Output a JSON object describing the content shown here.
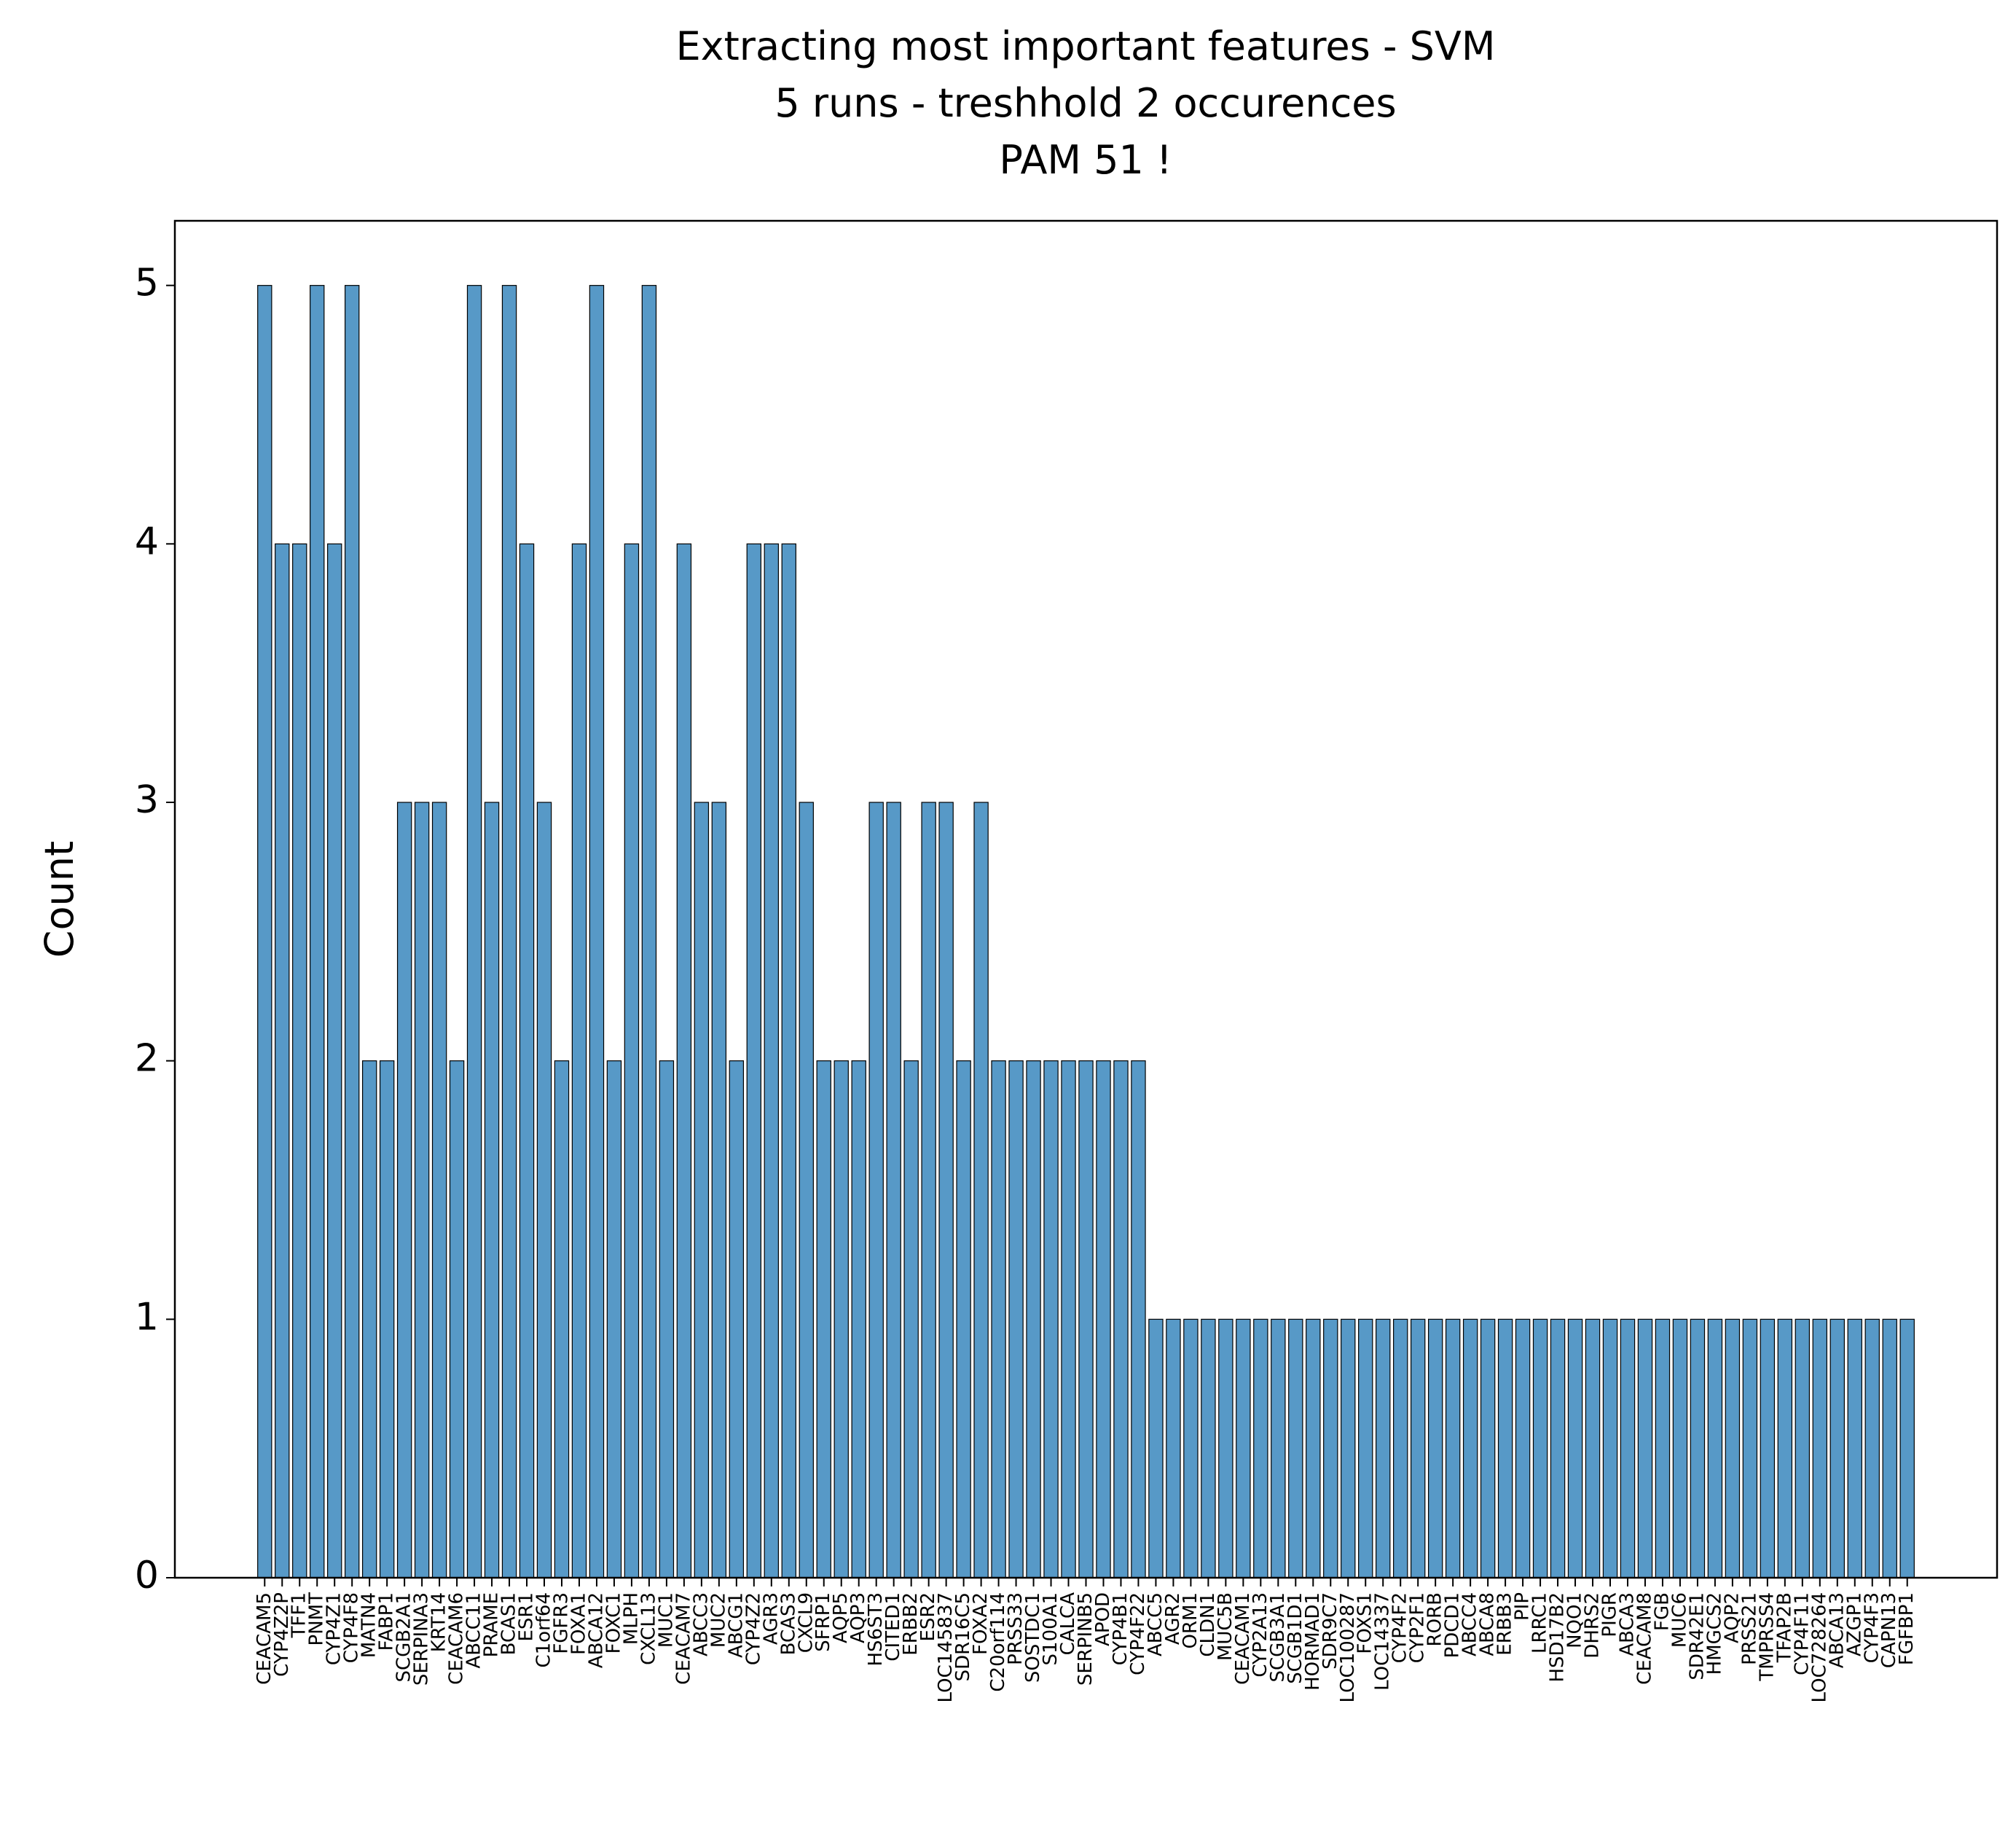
{
  "chart_data": {
    "type": "bar",
    "title": [
      "Extracting most important features - SVM",
      "5 runs - treshhold 2 occurences",
      "PAM 51 !"
    ],
    "ylabel": "Count",
    "categories": [
      "CEACAM5",
      "CYP4Z2P",
      "TFF1",
      "PNMT",
      "CYP4Z1",
      "CYP4F8",
      "MATN4",
      "FABP1",
      "SCGB2A1",
      "SERPINA3",
      "KRT14",
      "CEACAM6",
      "ABCC11",
      "PRAME",
      "BCAS1",
      "ESR1",
      "C1orf64",
      "FGFR3",
      "FOXA1",
      "ABCA12",
      "FOXC1",
      "MLPH",
      "CXCL13",
      "MUC1",
      "CEACAM7",
      "ABCC3",
      "MUC2",
      "ABCG1",
      "CYP4Z2",
      "AGR3",
      "BCAS3",
      "CXCL9",
      "SFRP1",
      "AQP5",
      "AQP3",
      "HS6ST3",
      "CITED1",
      "ERBB2",
      "ESR2",
      "LOC145837",
      "SDR16C5",
      "FOXA2",
      "C20orf114",
      "PRSS33",
      "SOSTDC1",
      "S100A1",
      "CALCA",
      "SERPINB5",
      "APOD",
      "CYP4B1",
      "CYP4F22",
      "ABCC5",
      "AGR2",
      "ORM1",
      "CLDN1",
      "MUC5B",
      "CEACAM1",
      "CYP2A13",
      "SCGB3A1",
      "SCGB1D1",
      "HORMAD1",
      "SDR9C7",
      "LOC100287",
      "FOXS1",
      "LOC14337",
      "CYP4F2",
      "CYP2F1",
      "RORB",
      "PDCD1",
      "ABCC4",
      "ABCA8",
      "ERBB3",
      "PIP",
      "LRRC1",
      "HSD17B2",
      "NQO1",
      "DHRS2",
      "PIGR",
      "ABCA3",
      "CEACAM8",
      "FGB",
      "MUC6",
      "SDR42E1",
      "HMGCS2",
      "AQP2",
      "PRSS21",
      "TMPRSS4",
      "TFAP2B",
      "CYP4F11",
      "LOC728264",
      "ABCA13",
      "AZGP1",
      "CYP4F3",
      "CAPN13",
      "FGFBP1"
    ],
    "values": [
      5,
      4,
      4,
      5,
      4,
      5,
      2,
      2,
      3,
      3,
      3,
      2,
      5,
      3,
      5,
      4,
      3,
      2,
      4,
      5,
      2,
      4,
      5,
      2,
      4,
      3,
      3,
      2,
      4,
      4,
      4,
      3,
      2,
      2,
      2,
      3,
      3,
      2,
      3,
      3,
      2,
      3,
      2,
      2,
      2,
      2,
      2,
      2,
      2,
      2,
      2,
      1,
      1,
      1,
      1,
      1,
      1,
      1,
      1,
      1,
      1,
      1,
      1,
      1,
      1,
      1,
      1,
      1,
      1,
      1,
      1,
      1,
      1,
      1,
      1,
      1,
      1,
      1,
      1,
      1,
      1,
      1,
      1,
      1,
      1,
      1,
      1,
      1,
      1,
      1,
      1,
      1,
      1,
      1,
      1
    ],
    "color": "#5799c7",
    "ylim": [
      0,
      5.25
    ],
    "yticks": [
      0,
      1,
      2,
      3,
      4,
      5
    ],
    "grid": false
  }
}
